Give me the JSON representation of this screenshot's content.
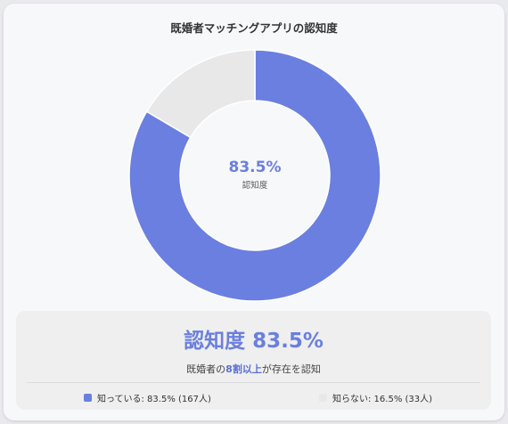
{
  "title": "既婚者マッチングアプリの認知度",
  "colors": {
    "known": "#6a7fe0",
    "unknown": "#e8e8e8"
  },
  "chart_data": {
    "type": "pie",
    "title": "既婚者マッチングアプリの認知度",
    "categories": [
      "知っている",
      "知らない"
    ],
    "values": [
      83.5,
      16.5
    ],
    "counts": [
      167,
      33
    ],
    "center_value": "83.5%",
    "center_label": "認知度",
    "legend_position": "bottom"
  },
  "summary": {
    "headline": "認知度 83.5%",
    "sub_prefix": "既婚者の",
    "sub_highlight": "8割以上",
    "sub_suffix": "が存在を認知"
  },
  "legend": [
    {
      "label": "知っている: 83.5% (167人)"
    },
    {
      "label": "知らない: 16.5% (33人)"
    }
  ]
}
